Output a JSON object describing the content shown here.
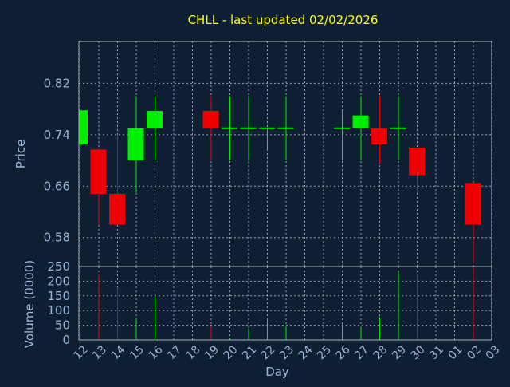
{
  "title": "CHLL - last updated 02/02/2026",
  "colors": {
    "background": "#0f1f33",
    "title": "#ffff00",
    "axis_text": "#9ab6d6",
    "axis_line": "#aab4c0",
    "grid": "#c8ccd2",
    "up": "#00ee00",
    "down": "#ee0000"
  },
  "chart_data": [
    {
      "type": "candlestick",
      "panel": "price",
      "title": "CHLL - last updated 02/02/2026",
      "xlabel": "",
      "ylabel": "Price",
      "ylim": [
        0.535,
        0.885
      ],
      "yticks": [
        0.58,
        0.66,
        0.74,
        0.82
      ],
      "grid": true,
      "categories": [
        "12",
        "13",
        "14",
        "15",
        "16",
        "17",
        "18",
        "19",
        "20",
        "21",
        "22",
        "23",
        "24",
        "25",
        "26",
        "27",
        "28",
        "29",
        "30",
        "31",
        "01",
        "02",
        "03"
      ],
      "candles": [
        {
          "day": "12",
          "open": 0.725,
          "high": 0.778,
          "low": 0.722,
          "close": 0.778
        },
        {
          "day": "13",
          "open": 0.717,
          "high": 0.717,
          "low": 0.6,
          "close": 0.648
        },
        {
          "day": "14",
          "open": 0.648,
          "high": 0.74,
          "low": 0.6,
          "close": 0.6
        },
        {
          "day": "15",
          "open": 0.7,
          "high": 0.8,
          "low": 0.65,
          "close": 0.75
        },
        {
          "day": "16",
          "open": 0.75,
          "high": 0.8,
          "low": 0.7,
          "close": 0.777
        },
        {
          "day": "19",
          "open": 0.777,
          "high": 0.8,
          "low": 0.7,
          "close": 0.75
        },
        {
          "day": "20",
          "open": 0.75,
          "high": 0.8,
          "low": 0.7,
          "close": 0.75
        },
        {
          "day": "21",
          "open": 0.75,
          "high": 0.8,
          "low": 0.7,
          "close": 0.75
        },
        {
          "day": "22",
          "open": 0.75,
          "high": 0.75,
          "low": 0.715,
          "close": 0.75
        },
        {
          "day": "23",
          "open": 0.75,
          "high": 0.8,
          "low": 0.7,
          "close": 0.75
        },
        {
          "day": "26",
          "open": 0.75,
          "high": 0.778,
          "low": 0.7,
          "close": 0.75
        },
        {
          "day": "27",
          "open": 0.75,
          "high": 0.8,
          "low": 0.7,
          "close": 0.77
        },
        {
          "day": "28",
          "open": 0.75,
          "high": 0.8,
          "low": 0.695,
          "close": 0.725
        },
        {
          "day": "29",
          "open": 0.75,
          "high": 0.8,
          "low": 0.7,
          "close": 0.75
        },
        {
          "day": "30",
          "open": 0.72,
          "high": 0.72,
          "low": 0.65,
          "close": 0.677
        },
        {
          "day": "02",
          "open": 0.665,
          "high": 0.665,
          "low": 0.54,
          "close": 0.6
        }
      ]
    },
    {
      "type": "bar",
      "panel": "volume",
      "xlabel": "Day",
      "ylabel": "Volume (0000)",
      "ylim": [
        0,
        250
      ],
      "yticks": [
        0,
        50,
        100,
        150,
        200,
        250
      ],
      "grid": true,
      "categories": [
        "12",
        "13",
        "14",
        "15",
        "16",
        "17",
        "18",
        "19",
        "20",
        "21",
        "22",
        "23",
        "24",
        "25",
        "26",
        "27",
        "28",
        "29",
        "30",
        "31",
        "01",
        "02",
        "03"
      ],
      "series": [
        {
          "values": [
            {
              "day": "12",
              "value": 0,
              "dir": "down"
            },
            {
              "day": "13",
              "value": 225,
              "dir": "down"
            },
            {
              "day": "14",
              "value": 178,
              "dir": "down"
            },
            {
              "day": "15",
              "value": 75,
              "dir": "up"
            },
            {
              "day": "16",
              "value": 148,
              "dir": "up"
            },
            {
              "day": "19",
              "value": 45,
              "dir": "down"
            },
            {
              "day": "20",
              "value": 5,
              "dir": "up"
            },
            {
              "day": "21",
              "value": 38,
              "dir": "up"
            },
            {
              "day": "22",
              "value": 75,
              "dir": "up"
            },
            {
              "day": "23",
              "value": 48,
              "dir": "up"
            },
            {
              "day": "26",
              "value": 58,
              "dir": "up"
            },
            {
              "day": "27",
              "value": 45,
              "dir": "up"
            },
            {
              "day": "28",
              "value": 78,
              "dir": "up"
            },
            {
              "day": "29",
              "value": 232,
              "dir": "up"
            },
            {
              "day": "30",
              "value": 225,
              "dir": "down"
            },
            {
              "day": "02",
              "value": 248,
              "dir": "down"
            }
          ]
        }
      ]
    }
  ]
}
